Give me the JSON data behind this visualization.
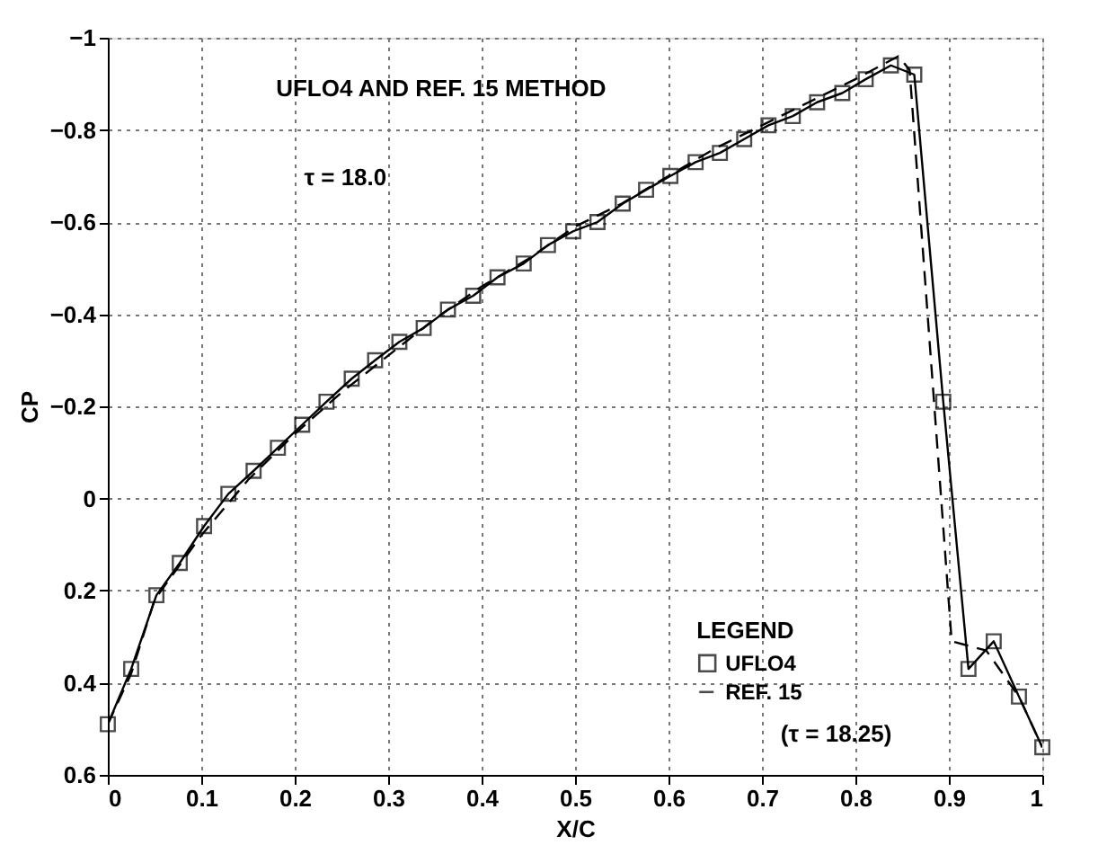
{
  "chart_data": {
    "type": "line",
    "title": "UFLO4 AND REF. 15 METHOD",
    "xlabel": "X/C",
    "ylabel": "CP",
    "legend_title": "LEGEND",
    "annotations": [
      "τ = 18.0",
      "(τ = 18.25)"
    ],
    "series": [
      {
        "name": "UFLO4",
        "color": "#000000",
        "marker": "square",
        "line_style": "solid",
        "x": [
          0,
          0.025,
          0.052,
          0.077,
          0.103,
          0.129,
          0.156,
          0.182,
          0.208,
          0.234,
          0.261,
          0.286,
          0.312,
          0.338,
          0.364,
          0.391,
          0.417,
          0.445,
          0.471,
          0.498,
          0.524,
          0.551,
          0.576,
          0.602,
          0.629,
          0.655,
          0.681,
          0.707,
          0.733,
          0.759,
          0.786,
          0.811,
          0.838,
          0.863,
          0.894,
          0.921,
          0.948,
          0.975,
          1.0
        ],
        "values": [
          0.49,
          0.37,
          0.21,
          0.14,
          0.06,
          -0.01,
          -0.06,
          -0.11,
          -0.16,
          -0.21,
          -0.26,
          -0.3,
          -0.34,
          -0.37,
          -0.41,
          -0.44,
          -0.48,
          -0.51,
          -0.55,
          -0.58,
          -0.6,
          -0.64,
          -0.67,
          -0.7,
          -0.73,
          -0.75,
          -0.78,
          -0.81,
          -0.83,
          -0.86,
          -0.88,
          -0.91,
          -0.94,
          -0.92,
          -0.21,
          0.37,
          0.31,
          0.43,
          0.54
        ]
      },
      {
        "name": "REF. 15",
        "color": "#000000",
        "marker": "none",
        "line_style": "dashed",
        "x": [
          0,
          0.025,
          0.05,
          0.1,
          0.15,
          0.2,
          0.25,
          0.3,
          0.35,
          0.4,
          0.45,
          0.5,
          0.55,
          0.6,
          0.65,
          0.7,
          0.75,
          0.8,
          0.846,
          0.858,
          0.903,
          0.94,
          0.975,
          1.0
        ],
        "values": [
          0.49,
          0.38,
          0.22,
          0.08,
          -0.04,
          -0.14,
          -0.23,
          -0.31,
          -0.39,
          -0.46,
          -0.52,
          -0.59,
          -0.64,
          -0.7,
          -0.76,
          -0.81,
          -0.86,
          -0.91,
          -0.96,
          -0.93,
          0.31,
          0.33,
          0.43,
          0.54
        ]
      }
    ],
    "xlim": [
      0,
      1
    ],
    "xticks": [
      0,
      0.1,
      0.2,
      0.3,
      0.4,
      0.5,
      0.6,
      0.7,
      0.8,
      0.9,
      1
    ],
    "ylim": [
      0.6,
      -1
    ],
    "yticks": [
      -1,
      -0.8,
      -0.6,
      -0.4,
      -0.2,
      0,
      0.2,
      0.4,
      0.6
    ],
    "grid": true,
    "legend": "bottom right"
  }
}
